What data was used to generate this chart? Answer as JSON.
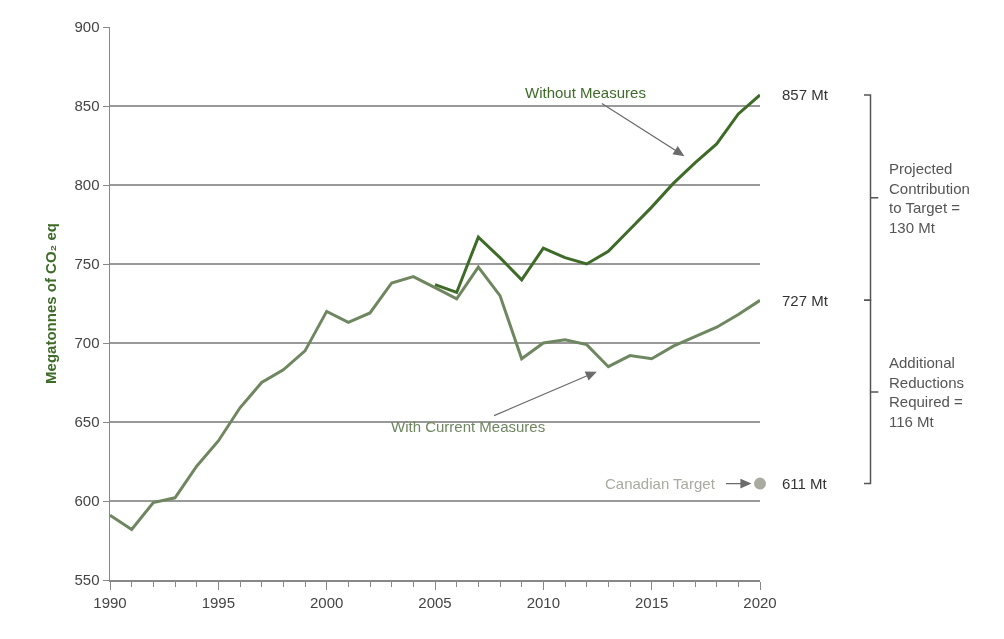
{
  "chart_data": {
    "type": "line",
    "ylabel": "Megatonnes of CO₂ eq",
    "xlim": [
      1990,
      2020
    ],
    "xticks": [
      1990,
      1995,
      2000,
      2005,
      2010,
      2015,
      2020
    ],
    "ylim": [
      550,
      900
    ],
    "yticks": [
      550,
      600,
      650,
      700,
      750,
      800,
      850,
      900
    ],
    "grid": "y",
    "legend": false,
    "marker": "none",
    "line_style": "solid",
    "series": [
      {
        "name": "Without Measures",
        "color": "#3e6b28",
        "x": [
          2005,
          2006,
          2007,
          2008,
          2009,
          2010,
          2011,
          2012,
          2013,
          2014,
          2015,
          2016,
          2017,
          2018,
          2019,
          2020
        ],
        "values": [
          737,
          732,
          767,
          754,
          740,
          760,
          754,
          750,
          758,
          772,
          786,
          801,
          814,
          826,
          845,
          857
        ]
      },
      {
        "name": "With Current Measures",
        "color": "#6f8760",
        "x": [
          1990,
          1991,
          1992,
          1993,
          1994,
          1995,
          1996,
          1997,
          1998,
          1999,
          2000,
          2001,
          2002,
          2003,
          2004,
          2005,
          2006,
          2007,
          2008,
          2009,
          2010,
          2011,
          2012,
          2013,
          2014,
          2015,
          2016,
          2017,
          2018,
          2019,
          2020
        ],
        "values": [
          591,
          582,
          599,
          602,
          622,
          638,
          659,
          675,
          683,
          695,
          720,
          713,
          719,
          738,
          742,
          735,
          728,
          748,
          730,
          690,
          700,
          702,
          699,
          685,
          692,
          690,
          698,
          704,
          710,
          718,
          727
        ]
      },
      {
        "name": "Canadian Target",
        "type": "scatter",
        "marker": "circle",
        "color": "#a9aba0",
        "x": [
          2020
        ],
        "values": [
          611
        ]
      }
    ],
    "annotations": [
      "857 Mt",
      "727 Mt",
      "611 Mt",
      "Projected Contribution to Target = 130 Mt",
      "Additional Reductions Required = 116 Mt"
    ]
  }
}
